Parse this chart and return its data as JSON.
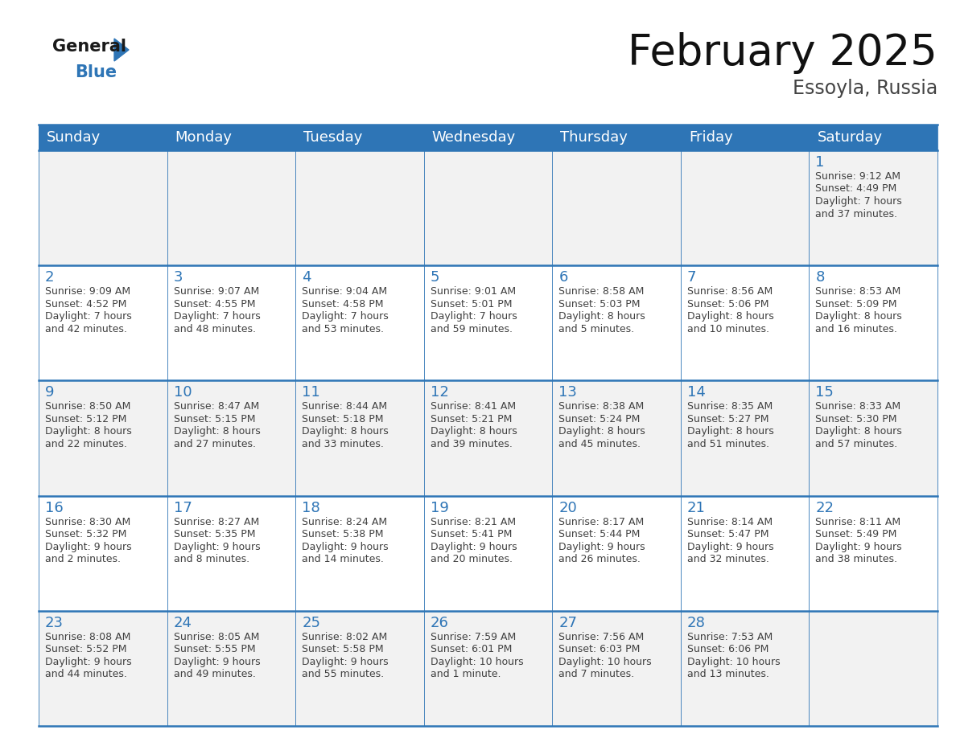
{
  "title": "February 2025",
  "subtitle": "Essoyla, Russia",
  "header_color": "#2E75B6",
  "header_text_color": "#FFFFFF",
  "days_of_week": [
    "Sunday",
    "Monday",
    "Tuesday",
    "Wednesday",
    "Thursday",
    "Friday",
    "Saturday"
  ],
  "bg_color": "#FFFFFF",
  "cell_bg_even": "#F2F2F2",
  "cell_bg_odd": "#FFFFFF",
  "border_color": "#2E75B6",
  "day_num_color": "#2E75B6",
  "text_color": "#404040",
  "calendar": [
    [
      null,
      null,
      null,
      null,
      null,
      null,
      {
        "day": "1",
        "sunrise": "9:12 AM",
        "sunset": "4:49 PM",
        "daylight": "7 hours",
        "daylight2": "and 37 minutes."
      }
    ],
    [
      {
        "day": "2",
        "sunrise": "9:09 AM",
        "sunset": "4:52 PM",
        "daylight": "7 hours",
        "daylight2": "and 42 minutes."
      },
      {
        "day": "3",
        "sunrise": "9:07 AM",
        "sunset": "4:55 PM",
        "daylight": "7 hours",
        "daylight2": "and 48 minutes."
      },
      {
        "day": "4",
        "sunrise": "9:04 AM",
        "sunset": "4:58 PM",
        "daylight": "7 hours",
        "daylight2": "and 53 minutes."
      },
      {
        "day": "5",
        "sunrise": "9:01 AM",
        "sunset": "5:01 PM",
        "daylight": "7 hours",
        "daylight2": "and 59 minutes."
      },
      {
        "day": "6",
        "sunrise": "8:58 AM",
        "sunset": "5:03 PM",
        "daylight": "8 hours",
        "daylight2": "and 5 minutes."
      },
      {
        "day": "7",
        "sunrise": "8:56 AM",
        "sunset": "5:06 PM",
        "daylight": "8 hours",
        "daylight2": "and 10 minutes."
      },
      {
        "day": "8",
        "sunrise": "8:53 AM",
        "sunset": "5:09 PM",
        "daylight": "8 hours",
        "daylight2": "and 16 minutes."
      }
    ],
    [
      {
        "day": "9",
        "sunrise": "8:50 AM",
        "sunset": "5:12 PM",
        "daylight": "8 hours",
        "daylight2": "and 22 minutes."
      },
      {
        "day": "10",
        "sunrise": "8:47 AM",
        "sunset": "5:15 PM",
        "daylight": "8 hours",
        "daylight2": "and 27 minutes."
      },
      {
        "day": "11",
        "sunrise": "8:44 AM",
        "sunset": "5:18 PM",
        "daylight": "8 hours",
        "daylight2": "and 33 minutes."
      },
      {
        "day": "12",
        "sunrise": "8:41 AM",
        "sunset": "5:21 PM",
        "daylight": "8 hours",
        "daylight2": "and 39 minutes."
      },
      {
        "day": "13",
        "sunrise": "8:38 AM",
        "sunset": "5:24 PM",
        "daylight": "8 hours",
        "daylight2": "and 45 minutes."
      },
      {
        "day": "14",
        "sunrise": "8:35 AM",
        "sunset": "5:27 PM",
        "daylight": "8 hours",
        "daylight2": "and 51 minutes."
      },
      {
        "day": "15",
        "sunrise": "8:33 AM",
        "sunset": "5:30 PM",
        "daylight": "8 hours",
        "daylight2": "and 57 minutes."
      }
    ],
    [
      {
        "day": "16",
        "sunrise": "8:30 AM",
        "sunset": "5:32 PM",
        "daylight": "9 hours",
        "daylight2": "and 2 minutes."
      },
      {
        "day": "17",
        "sunrise": "8:27 AM",
        "sunset": "5:35 PM",
        "daylight": "9 hours",
        "daylight2": "and 8 minutes."
      },
      {
        "day": "18",
        "sunrise": "8:24 AM",
        "sunset": "5:38 PM",
        "daylight": "9 hours",
        "daylight2": "and 14 minutes."
      },
      {
        "day": "19",
        "sunrise": "8:21 AM",
        "sunset": "5:41 PM",
        "daylight": "9 hours",
        "daylight2": "and 20 minutes."
      },
      {
        "day": "20",
        "sunrise": "8:17 AM",
        "sunset": "5:44 PM",
        "daylight": "9 hours",
        "daylight2": "and 26 minutes."
      },
      {
        "day": "21",
        "sunrise": "8:14 AM",
        "sunset": "5:47 PM",
        "daylight": "9 hours",
        "daylight2": "and 32 minutes."
      },
      {
        "day": "22",
        "sunrise": "8:11 AM",
        "sunset": "5:49 PM",
        "daylight": "9 hours",
        "daylight2": "and 38 minutes."
      }
    ],
    [
      {
        "day": "23",
        "sunrise": "8:08 AM",
        "sunset": "5:52 PM",
        "daylight": "9 hours",
        "daylight2": "and 44 minutes."
      },
      {
        "day": "24",
        "sunrise": "8:05 AM",
        "sunset": "5:55 PM",
        "daylight": "9 hours",
        "daylight2": "and 49 minutes."
      },
      {
        "day": "25",
        "sunrise": "8:02 AM",
        "sunset": "5:58 PM",
        "daylight": "9 hours",
        "daylight2": "and 55 minutes."
      },
      {
        "day": "26",
        "sunrise": "7:59 AM",
        "sunset": "6:01 PM",
        "daylight": "10 hours",
        "daylight2": "and 1 minute."
      },
      {
        "day": "27",
        "sunrise": "7:56 AM",
        "sunset": "6:03 PM",
        "daylight": "10 hours",
        "daylight2": "and 7 minutes."
      },
      {
        "day": "28",
        "sunrise": "7:53 AM",
        "sunset": "6:06 PM",
        "daylight": "10 hours",
        "daylight2": "and 13 minutes."
      },
      null
    ]
  ],
  "logo_color_general": "#1a1a1a",
  "logo_color_blue": "#2E75B6",
  "title_fontsize": 38,
  "subtitle_fontsize": 17,
  "header_fontsize": 13,
  "day_num_fontsize": 13,
  "cell_text_fontsize": 9
}
